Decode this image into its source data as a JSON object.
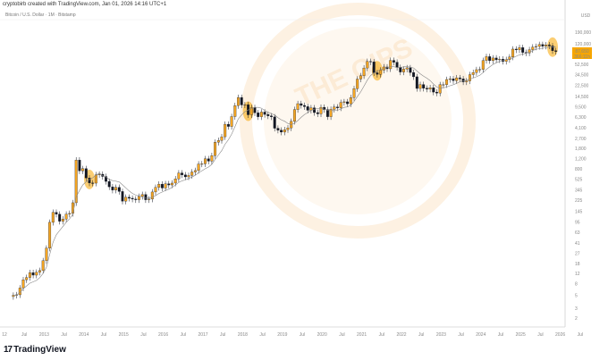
{
  "header": {
    "credit": "cryptobirb created with TradingView.com, Jan 01, 2026 14:16 UTC+1",
    "symbol": "Bitcoin / U.S. Dollar · 1M · Bitstamp"
  },
  "brand": {
    "logo_mark": "17",
    "logo_text": "TradingView"
  },
  "colors": {
    "bull": "#f5a623",
    "bear": "#131722",
    "ma": "#888888",
    "highlight": "#f7a600",
    "price_label": "#f7a600"
  },
  "chart_data": {
    "type": "candlestick",
    "title": "Bitcoin / U.S. Dollar · 1M · Bitstamp",
    "yscale": "log",
    "ylabel": "USD",
    "ylim": [
      1.6,
      260000
    ],
    "y_ticks": [
      "190,000",
      "120,000",
      "52,500",
      "34,500",
      "22,500",
      "14,500",
      "9,500",
      "6,300",
      "4,100",
      "2,700",
      "1,800",
      "1,200",
      "800",
      "525",
      "345",
      "225",
      "145",
      "95",
      "63",
      "41",
      "27",
      "18",
      "12",
      "8",
      "5",
      "3",
      "2"
    ],
    "x_ticks": [
      "12",
      "Jul",
      "2013",
      "Jul",
      "2014",
      "Jul",
      "2015",
      "Jul",
      "2016",
      "Jul",
      "2017",
      "Jul",
      "2018",
      "Jul",
      "2019",
      "Jul",
      "2020",
      "Jul",
      "2021",
      "Jul",
      "2022",
      "Jul",
      "2023",
      "Jul",
      "2024",
      "Jul",
      "2025",
      "Jul",
      "2026",
      "Jul"
    ],
    "start": "2012-04",
    "monthly_close": [
      5,
      5.1,
      6.7,
      9.3,
      10.2,
      12.4,
      11.2,
      12.6,
      13.5,
      20,
      33,
      93,
      139,
      129,
      97,
      106,
      129,
      133,
      204,
      1130,
      732,
      800,
      550,
      450,
      447,
      627,
      640,
      585,
      480,
      386,
      338,
      378,
      320,
      217,
      254,
      244,
      236,
      230,
      263,
      284,
      230,
      236,
      314,
      377,
      430,
      368,
      437,
      416,
      448,
      531,
      673,
      624,
      575,
      609,
      700,
      742,
      963,
      970,
      1190,
      1080,
      1350,
      2300,
      2480,
      2870,
      4740,
      4340,
      6450,
      10000,
      13860,
      10280,
      10330,
      6930,
      9240,
      7500,
      6400,
      7730,
      7030,
      6630,
      6370,
      4040,
      3740,
      3460,
      3810,
      4100,
      5320,
      8560,
      10820,
      10090,
      9600,
      8300,
      9150,
      7570,
      7190,
      9350,
      8540,
      6420,
      8620,
      9450,
      9140,
      11350,
      11660,
      10780,
      13800,
      19700,
      28990,
      33110,
      45200,
      58800,
      57700,
      37300,
      35040,
      41460,
      47100,
      43800,
      61300,
      57000,
      46200,
      38500,
      43200,
      45500,
      37700,
      31800,
      19900,
      23300,
      20050,
      19400,
      20500,
      17200,
      16540,
      23130,
      23150,
      28480,
      29250,
      27220,
      30480,
      29230,
      25940,
      26960,
      34650,
      37720,
      42280,
      42580,
      61180,
      71300,
      60650,
      67500,
      62700,
      64600,
      58970,
      63330,
      70200,
      96400,
      93400,
      102400,
      84350,
      82550,
      94200,
      104600,
      107150,
      115760,
      108250,
      114050,
      109600,
      90400,
      87650
    ],
    "moving_average_period": 8,
    "highlighted_months": [
      "2014-03",
      "2018-03",
      "2021-06",
      "2025-11"
    ],
    "last_price": "87,650",
    "countdown": "366:11h"
  }
}
